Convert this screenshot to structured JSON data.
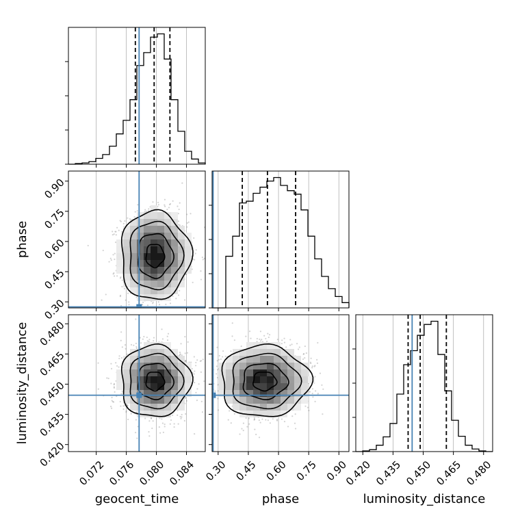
{
  "chart_data": {
    "type": "corner",
    "parameters": [
      "geocent_time",
      "phase",
      "luminosity_distance"
    ],
    "axis_labels": {
      "geocent_time": "geocent_time",
      "phase": "phase",
      "luminosity_distance": "luminosity_distance"
    },
    "ranges": {
      "geocent_time": [
        0.0683,
        0.0865
      ],
      "phase": [
        0.27,
        0.95
      ],
      "luminosity_distance": [
        0.4165,
        0.4845
      ]
    },
    "ticks": {
      "geocent_time": [
        "0.072",
        "0.076",
        "0.080",
        "0.084"
      ],
      "phase": [
        "0.30",
        "0.45",
        "0.60",
        "0.75",
        "0.90"
      ],
      "luminosity_distance": [
        "0.420",
        "0.435",
        "0.450",
        "0.465",
        "0.480"
      ]
    },
    "truths": {
      "geocent_time": 0.0777,
      "phase": 0.275,
      "luminosity_distance": 0.4445
    },
    "quantiles": {
      "geocent_time": [
        0.0772,
        0.0797,
        0.0818
      ],
      "phase": [
        0.42,
        0.545,
        0.685
      ],
      "luminosity_distance": [
        0.4425,
        0.4485,
        0.4615
      ]
    },
    "histograms": {
      "geocent_time": {
        "range": [
          0.0683,
          0.0865
        ],
        "counts": [
          0,
          1,
          2,
          4,
          9,
          15,
          28,
          47,
          68,
          100,
          153,
          173,
          197,
          202,
          163,
          100,
          51,
          20,
          8,
          2
        ]
      },
      "phase": {
        "range": [
          0.27,
          0.95
        ],
        "counts": [
          0,
          0,
          59,
          82,
          120,
          122,
          131,
          138,
          145,
          149,
          140,
          134,
          130,
          112,
          82,
          56,
          36,
          22,
          13,
          6
        ]
      },
      "luminosity_distance": {
        "range": [
          0.4165,
          0.4845
        ],
        "counts": [
          0,
          1,
          3,
          10,
          23,
          44,
          90,
          136,
          158,
          182,
          199,
          204,
          152,
          95,
          49,
          24,
          10,
          4,
          1,
          0
        ]
      }
    },
    "posterior_2d": [
      {
        "x": "geocent_time",
        "y": "phase",
        "mean": [
          0.0798,
          0.53
        ],
        "sd": [
          0.0022,
          0.105
        ],
        "corr": 0.0
      },
      {
        "x": "geocent_time",
        "y": "luminosity_distance",
        "mean": [
          0.0798,
          0.4515
        ],
        "sd": [
          0.0022,
          0.0085
        ],
        "corr": 0.0
      },
      {
        "x": "phase",
        "y": "luminosity_distance",
        "mean": [
          0.53,
          0.4515
        ],
        "sd": [
          0.105,
          0.0085
        ],
        "corr": 0.0
      }
    ],
    "grid": true,
    "colors": {
      "truth": "#4682b4",
      "quantile": "#000000",
      "hist": "#000000",
      "scatter": "#808080"
    }
  }
}
